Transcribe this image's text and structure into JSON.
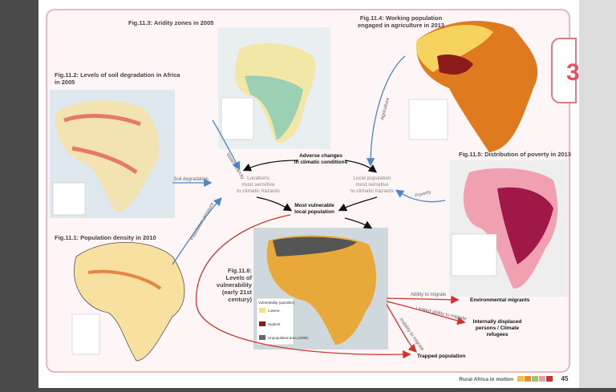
{
  "header": {
    "chapter": "3"
  },
  "figures": {
    "fig111": {
      "title": [
        "Fig.11.1:  Population density in 2010"
      ]
    },
    "fig112": {
      "title": [
        "Fig.11.2:  Levels of soil degradation in Africa",
        "in 2005"
      ]
    },
    "fig113": {
      "title": [
        "Fig.11.3: Aridity zones in 2005"
      ]
    },
    "fig114": {
      "title": [
        "Fig.11.4: Working population",
        "engaged in agriculture in 2013"
      ]
    },
    "fig115": {
      "title": [
        "Fig.11.5: Distribution of poverty in 2013"
      ]
    },
    "fig116": {
      "title": [
        "Fig.11.6:",
        "Levels of",
        "vulnerability",
        "(early 21st",
        "century)"
      ],
      "legend": {
        "title": "Vulnerability (quintiles)",
        "low": "Lowest",
        "high": "Highest",
        "unpopulated": "Unpopulated area (2008)"
      }
    }
  },
  "flow": {
    "nodes": {
      "adverse": [
        "Adverse changes",
        "in climatic conditions"
      ],
      "locations": [
        "Locations",
        "most sensitive",
        "to climatic hazards"
      ],
      "local": [
        "Local population",
        "most sensitive",
        "to climatic hazards"
      ],
      "vulnerable": [
        "Most vulnerable",
        "local population"
      ],
      "migrants": [
        "Environmental migrants"
      ],
      "displaced": [
        "Internally displaced",
        "persons / Climate",
        "refugees"
      ],
      "trapped": [
        "Trapped population"
      ]
    },
    "edges": {
      "soil": "Soil degradation",
      "water": "Water scarcity",
      "agriculture": "Agriculture",
      "poverty": "Poverty",
      "population": "Population pressure",
      "ability": "Ability to migrate",
      "limited": "Limited ability to migrate",
      "inability": "Inability to migrate"
    }
  },
  "footer": {
    "title": "Rural Africa in motion",
    "page": "45"
  }
}
